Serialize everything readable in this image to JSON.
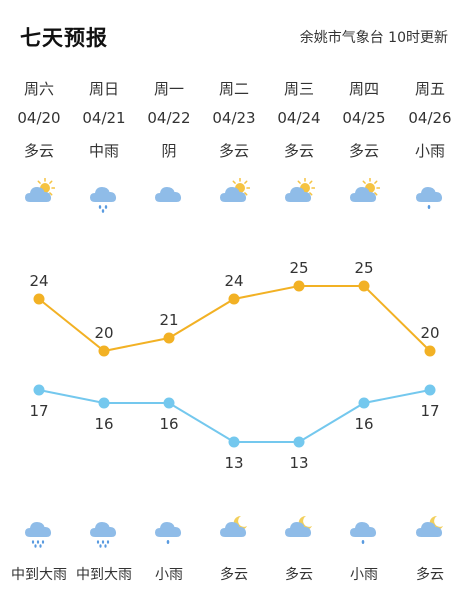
{
  "header": {
    "title": "七天预报",
    "source": "余姚市气象台 10时更新"
  },
  "days": [
    {
      "dow": "周六",
      "date": "04/20",
      "day_cond": "多云",
      "day_icon": "partly-cloudy-sun-icon",
      "high": 24,
      "low": 17,
      "night_icon": "rain-heavy-icon",
      "night_cond": "中到大雨"
    },
    {
      "dow": "周日",
      "date": "04/21",
      "day_cond": "中雨",
      "day_icon": "rain-moderate-icon",
      "high": 20,
      "low": 16,
      "night_icon": "rain-heavy-icon",
      "night_cond": "中到大雨"
    },
    {
      "dow": "周一",
      "date": "04/22",
      "day_cond": "阴",
      "day_icon": "cloud-icon",
      "high": 21,
      "low": 16,
      "night_icon": "rain-light-icon",
      "night_cond": "小雨"
    },
    {
      "dow": "周二",
      "date": "04/23",
      "day_cond": "多云",
      "day_icon": "partly-cloudy-sun-icon",
      "high": 24,
      "low": 13,
      "night_icon": "partly-cloudy-moon-icon",
      "night_cond": "多云"
    },
    {
      "dow": "周三",
      "date": "04/24",
      "day_cond": "多云",
      "day_icon": "partly-cloudy-sun-icon",
      "high": 25,
      "low": 13,
      "night_icon": "partly-cloudy-moon-icon",
      "night_cond": "多云"
    },
    {
      "dow": "周四",
      "date": "04/25",
      "day_cond": "多云",
      "day_icon": "partly-cloudy-sun-icon",
      "high": 25,
      "low": 16,
      "night_icon": "rain-light-icon",
      "night_cond": "小雨"
    },
    {
      "dow": "周五",
      "date": "04/26",
      "day_cond": "小雨",
      "day_icon": "rain-light-icon",
      "high": 20,
      "low": 17,
      "night_icon": "partly-cloudy-moon-icon",
      "night_cond": "多云"
    }
  ],
  "colors": {
    "high_line": "#f2b124",
    "low_line": "#74c8ee",
    "cloud": "#8fbce8",
    "sun": "#f5c342",
    "moon": "#f2cf5b",
    "rain": "#5a9be0"
  }
}
